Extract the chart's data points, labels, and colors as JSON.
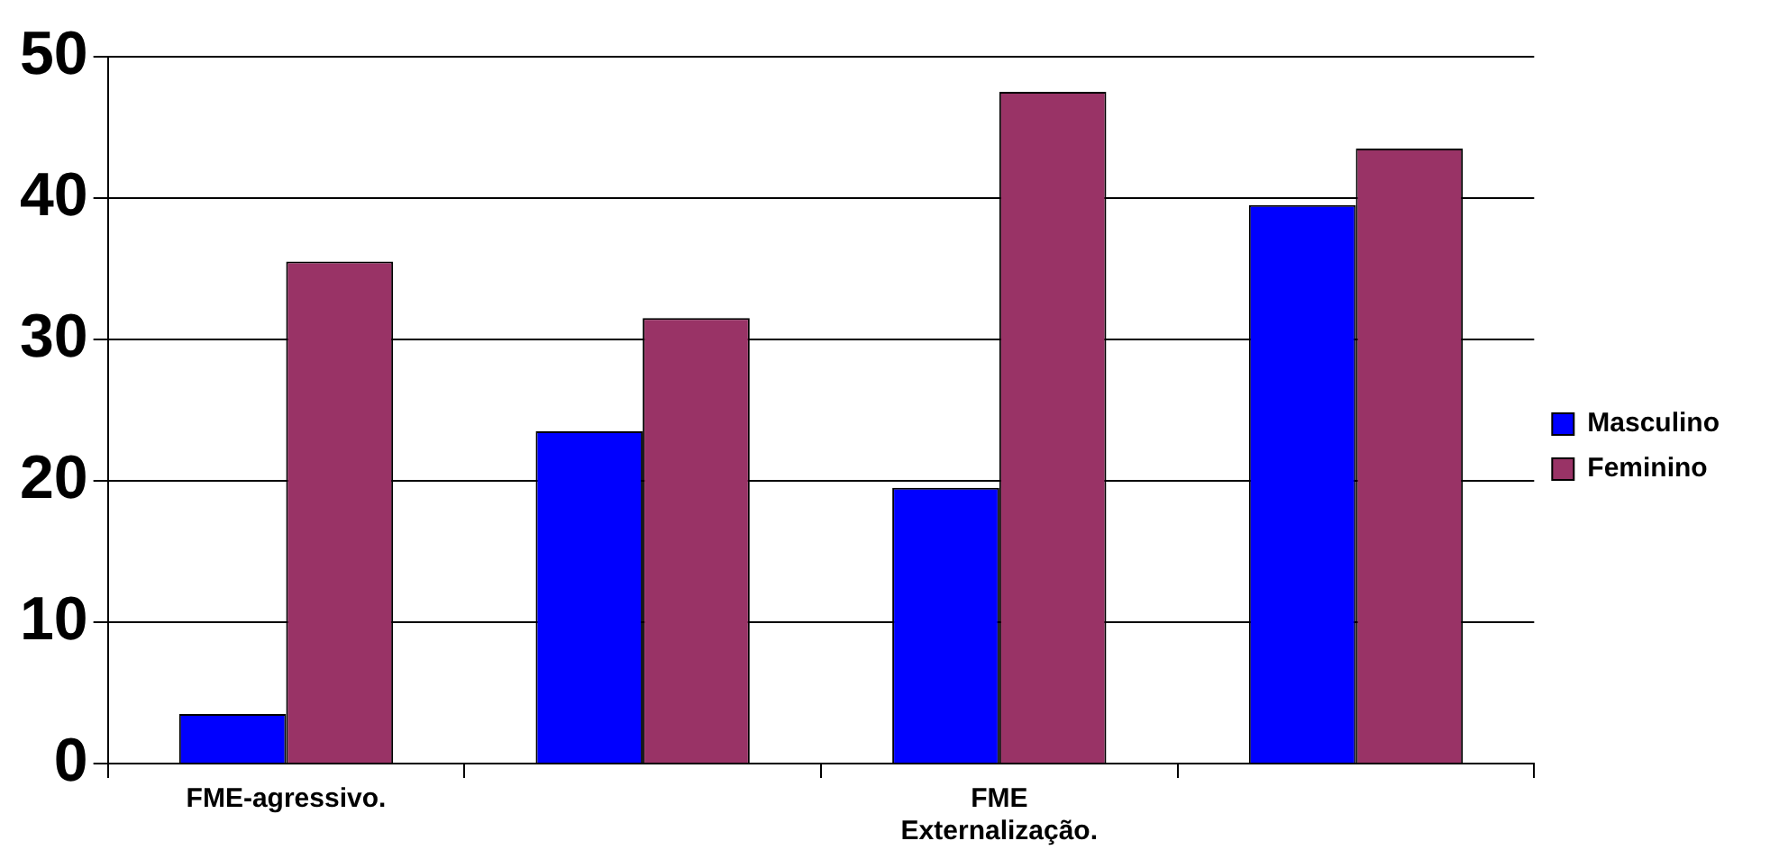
{
  "chart_data": {
    "type": "bar",
    "categories": [
      "FME-agressivo.",
      null,
      "FME\nExternalização.",
      null
    ],
    "series": [
      {
        "name": "Masculino",
        "color": "#0000ff",
        "values": [
          3.5,
          23.5,
          19.5,
          39.5
        ]
      },
      {
        "name": "Feminino",
        "color": "#993366",
        "values": [
          35.5,
          31.5,
          47.5,
          43.5
        ]
      }
    ],
    "ylim": [
      0,
      50
    ],
    "yticks": [
      0,
      10,
      20,
      30,
      40,
      50
    ],
    "grid": "y",
    "legend": "right"
  }
}
